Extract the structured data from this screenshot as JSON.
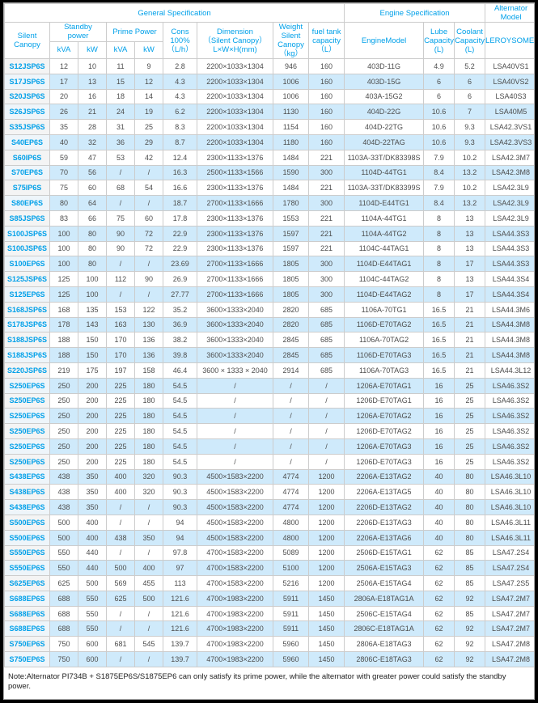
{
  "colors": {
    "accent_blue": "#00a0e9",
    "alt_row_blue": "#cfeafb",
    "model_col_gray": "#f4f4f4"
  },
  "header": {
    "group_general": "General Specification",
    "group_engine": "Engine Specification",
    "group_alternator": "Alternator Model",
    "silent_canopy": "Silent Canopy",
    "standby_power": "Standby\npower",
    "prime_power": "Prime Power",
    "kva_standby": "kVA",
    "kw_standby": "kW",
    "kva_prime": "kVA",
    "kw_prime": "kW",
    "cons": "Cons\n100%\n（L/h）",
    "dimension": "Dimension\n（Silent Canopy）\nL×W×H(mm)",
    "weight": "Weight\nSilent\nCanopy\n（kg）",
    "fuel_tank": "fuel tank\ncapacity\n（L）",
    "engine_model": "EngineModel",
    "lube_capacity": "Lube\nCapacity\n(L)",
    "coolant_capacity": "Coolant\nCapacity\n(L)",
    "leroysomer": "LEROYSOMER"
  },
  "rows": [
    [
      "S12JSP6S",
      "12",
      "10",
      "11",
      "9",
      "2.8",
      "2200×1033×1304",
      "946",
      "160",
      "403D-11G",
      "4.9",
      "5.2",
      "LSA40VS1"
    ],
    [
      "S17JSP6S",
      "17",
      "13",
      "15",
      "12",
      "4.3",
      "2200×1033×1304",
      "1006",
      "160",
      "403D-15G",
      "6",
      "6",
      "LSA40VS2"
    ],
    [
      "S20JSP6S",
      "20",
      "16",
      "18",
      "14",
      "4.3",
      "2200×1033×1304",
      "1006",
      "160",
      "403A-15G2",
      "6",
      "6",
      "LSA40S3"
    ],
    [
      "S26JSP6S",
      "26",
      "21",
      "24",
      "19",
      "6.2",
      "2200×1033×1304",
      "1130",
      "160",
      "404D-22G",
      "10.6",
      "7",
      "LSA40M5"
    ],
    [
      "S35JSP6S",
      "35",
      "28",
      "31",
      "25",
      "8.3",
      "2200×1033×1304",
      "1154",
      "160",
      "404D-22TG",
      "10.6",
      "9.3",
      "LSA42.3VS1"
    ],
    [
      "S40EP6S",
      "40",
      "32",
      "36",
      "29",
      "8.7",
      "2200×1033×1304",
      "1180",
      "160",
      "404D-22TAG",
      "10.6",
      "9.3",
      "LSA42.3VS3"
    ],
    [
      "S60IP6S",
      "59",
      "47",
      "53",
      "42",
      "12.4",
      "2300×1133×1376",
      "1484",
      "221",
      "1103A-33T/DK83398S",
      "7.9",
      "10.2",
      "LSA42.3M7"
    ],
    [
      "S70EP6S",
      "70",
      "56",
      "/",
      "/",
      "16.3",
      "2500×1133×1566",
      "1590",
      "300",
      "1104D-44TG1",
      "8.4",
      "13.2",
      "LSA42.3M8"
    ],
    [
      "S75IP6S",
      "75",
      "60",
      "68",
      "54",
      "16.6",
      "2300×1133×1376",
      "1484",
      "221",
      "1103A-33T/DK83399S",
      "7.9",
      "10.2",
      "LSA42.3L9"
    ],
    [
      "S80EP6S",
      "80",
      "64",
      "/",
      "/",
      "18.7",
      "2700×1133×1666",
      "1780",
      "300",
      "1104D-E44TG1",
      "8.4",
      "13.2",
      "LSA42.3L9"
    ],
    [
      "S85JSP6S",
      "83",
      "66",
      "75",
      "60",
      "17.8",
      "2300×1133×1376",
      "1553",
      "221",
      "1104A-44TG1",
      "8",
      "13",
      "LSA42.3L9"
    ],
    [
      "S100JSP6S",
      "100",
      "80",
      "90",
      "72",
      "22.9",
      "2300×1133×1376",
      "1597",
      "221",
      "1104A-44TG2",
      "8",
      "13",
      "LSA44.3S3"
    ],
    [
      "S100JSP6S",
      "100",
      "80",
      "90",
      "72",
      "22.9",
      "2300×1133×1376",
      "1597",
      "221",
      "1104C-44TAG1",
      "8",
      "13",
      "LSA44.3S3"
    ],
    [
      "S100EP6S",
      "100",
      "80",
      "/",
      "/",
      "23.69",
      "2700×1133×1666",
      "1805",
      "300",
      "1104D-E44TAG1",
      "8",
      "17",
      "LSA44.3S3"
    ],
    [
      "S125JSP6S",
      "125",
      "100",
      "112",
      "90",
      "26.9",
      "2700×1133×1666",
      "1805",
      "300",
      "1104C-44TAG2",
      "8",
      "13",
      "LSA44.3S4"
    ],
    [
      "S125EP6S",
      "125",
      "100",
      "/",
      "/",
      "27.77",
      "2700×1133×1666",
      "1805",
      "300",
      "1104D-E44TAG2",
      "8",
      "17",
      "LSA44.3S4"
    ],
    [
      "S168JSP6S",
      "168",
      "135",
      "153",
      "122",
      "35.2",
      "3600×1333×2040",
      "2820",
      "685",
      "1106A-70TG1",
      "16.5",
      "21",
      "LSA44.3M6"
    ],
    [
      "S178JSP6S",
      "178",
      "143",
      "163",
      "130",
      "36.9",
      "3600×1333×2040",
      "2820",
      "685",
      "1106D-E70TAG2",
      "16.5",
      "21",
      "LSA44.3M8"
    ],
    [
      "S188JSP6S",
      "188",
      "150",
      "170",
      "136",
      "38.2",
      "3600×1333×2040",
      "2845",
      "685",
      "1106A-70TAG2",
      "16.5",
      "21",
      "LSA44.3M8"
    ],
    [
      "S188JSP6S",
      "188",
      "150",
      "170",
      "136",
      "39.8",
      "3600×1333×2040",
      "2845",
      "685",
      "1106D-E70TAG3",
      "16.5",
      "21",
      "LSA44.3M8"
    ],
    [
      "S220JSP6S",
      "219",
      "175",
      "197",
      "158",
      "46.4",
      "3600 × 1333 × 2040",
      "2914",
      "685",
      "1106A-70TAG3",
      "16.5",
      "21",
      "LSA44.3L12"
    ],
    [
      "S250EP6S",
      "250",
      "200",
      "225",
      "180",
      "54.5",
      "/",
      "/",
      "/",
      "1206A-E70TAG1",
      "16",
      "25",
      "LSA46.3S2"
    ],
    [
      "S250EP6S",
      "250",
      "200",
      "225",
      "180",
      "54.5",
      "/",
      "/",
      "/",
      "1206D-E70TAG1",
      "16",
      "25",
      "LSA46.3S2"
    ],
    [
      "S250EP6S",
      "250",
      "200",
      "225",
      "180",
      "54.5",
      "/",
      "/",
      "/",
      "1206A-E70TAG2",
      "16",
      "25",
      "LSA46.3S2"
    ],
    [
      "S250EP6S",
      "250",
      "200",
      "225",
      "180",
      "54.5",
      "/",
      "/",
      "/",
      "1206D-E70TAG2",
      "16",
      "25",
      "LSA46.3S2"
    ],
    [
      "S250EP6S",
      "250",
      "200",
      "225",
      "180",
      "54.5",
      "/",
      "/",
      "/",
      "1206A-E70TAG3",
      "16",
      "25",
      "LSA46.3S2"
    ],
    [
      "S250EP6S",
      "250",
      "200",
      "225",
      "180",
      "54.5",
      "/",
      "/",
      "/",
      "1206D-E70TAG3",
      "16",
      "25",
      "LSA46.3S2"
    ],
    [
      "S438EP6S",
      "438",
      "350",
      "400",
      "320",
      "90.3",
      "4500×1583×2200",
      "4774",
      "1200",
      "2206A-E13TAG2",
      "40",
      "80",
      "LSA46.3L10"
    ],
    [
      "S438EP6S",
      "438",
      "350",
      "400",
      "320",
      "90.3",
      "4500×1583×2200",
      "4774",
      "1200",
      "2206A-E13TAG5",
      "40",
      "80",
      "LSA46.3L10"
    ],
    [
      "S438EP6S",
      "438",
      "350",
      "/",
      "/",
      "90.3",
      "4500×1583×2200",
      "4774",
      "1200",
      "2206D-E13TAG2",
      "40",
      "80",
      "LSA46.3L10"
    ],
    [
      "S500EP6S",
      "500",
      "400",
      "/",
      "/",
      "94",
      "4500×1583×2200",
      "4800",
      "1200",
      "2206D-E13TAG3",
      "40",
      "80",
      "LSA46.3L11"
    ],
    [
      "S500EP6S",
      "500",
      "400",
      "438",
      "350",
      "94",
      "4500×1583×2200",
      "4800",
      "1200",
      "2206A-E13TAG6",
      "40",
      "80",
      "LSA46.3L11"
    ],
    [
      "S550EP6S",
      "550",
      "440",
      "/",
      "/",
      "97.8",
      "4700×1583×2200",
      "5089",
      "1200",
      "2506D-E15TAG1",
      "62",
      "85",
      "LSA47.2S4"
    ],
    [
      "S550EP6S",
      "550",
      "440",
      "500",
      "400",
      "97",
      "4700×1583×2200",
      "5100",
      "1200",
      "2506A-E15TAG3",
      "62",
      "85",
      "LSA47.2S4"
    ],
    [
      "S625EP6S",
      "625",
      "500",
      "569",
      "455",
      "113",
      "4700×1583×2200",
      "5216",
      "1200",
      "2506A-E15TAG4",
      "62",
      "85",
      "LSA47.2S5"
    ],
    [
      "S688EP6S",
      "688",
      "550",
      "625",
      "500",
      "121.6",
      "4700×1983×2200",
      "5911",
      "1450",
      "2806A-E18TAG1A",
      "62",
      "92",
      "LSA47.2M7"
    ],
    [
      "S688EP6S",
      "688",
      "550",
      "/",
      "/",
      "121.6",
      "4700×1983×2200",
      "5911",
      "1450",
      "2506C-E15TAG4",
      "62",
      "85",
      "LSA47.2M7"
    ],
    [
      "S688EP6S",
      "688",
      "550",
      "/",
      "/",
      "121.6",
      "4700×1983×2200",
      "5911",
      "1450",
      "2806C-E18TAG1A",
      "62",
      "92",
      "LSA47.2M7"
    ],
    [
      "S750EP6S",
      "750",
      "600",
      "681",
      "545",
      "139.7",
      "4700×1983×2200",
      "5960",
      "1450",
      "2806A-E18TAG3",
      "62",
      "92",
      "LSA47.2M8"
    ],
    [
      "S750EP6S",
      "750",
      "600",
      "/",
      "/",
      "139.7",
      "4700×1983×2200",
      "5960",
      "1450",
      "2806C-E18TAG3",
      "62",
      "92",
      "LSA47.2M8"
    ]
  ],
  "note": "Note:Alternator PI734B + S1875EP6S/S1875EP6 can only satisfy its prime power, while the alternator with greater power could satisfy the standby power."
}
